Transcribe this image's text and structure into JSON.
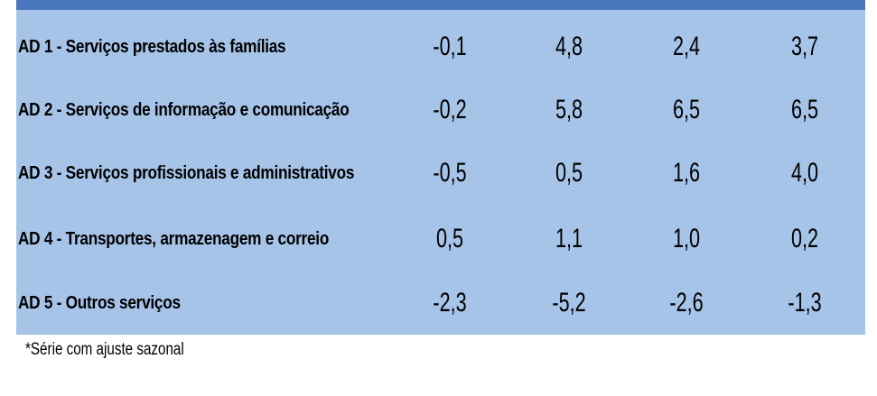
{
  "table": {
    "header_color": "#4a77be",
    "body_color": "#a6c3e8",
    "rows": [
      {
        "label": "AD 1 - Serviços prestados às famílias",
        "values": [
          "-0,1",
          "4,8",
          "2,4",
          "3,7"
        ]
      },
      {
        "label": "AD 2 - Serviços de informação e comunicação",
        "values": [
          "-0,2",
          "5,8",
          "6,5",
          "6,5"
        ]
      },
      {
        "label": "AD 3 - Serviços profissionais e administrativos",
        "values": [
          "-0,5",
          "0,5",
          "1,6",
          "4,0"
        ]
      },
      {
        "label": "AD 4 - Transportes, armazenagem e correio",
        "values": [
          "0,5",
          "1,1",
          "1,0",
          "0,2"
        ]
      },
      {
        "label": "AD 5 - Outros serviços",
        "values": [
          "-2,3",
          "-5,2",
          "-2,6",
          "-1,3"
        ]
      }
    ]
  },
  "footnote": "*Série com ajuste sazonal"
}
